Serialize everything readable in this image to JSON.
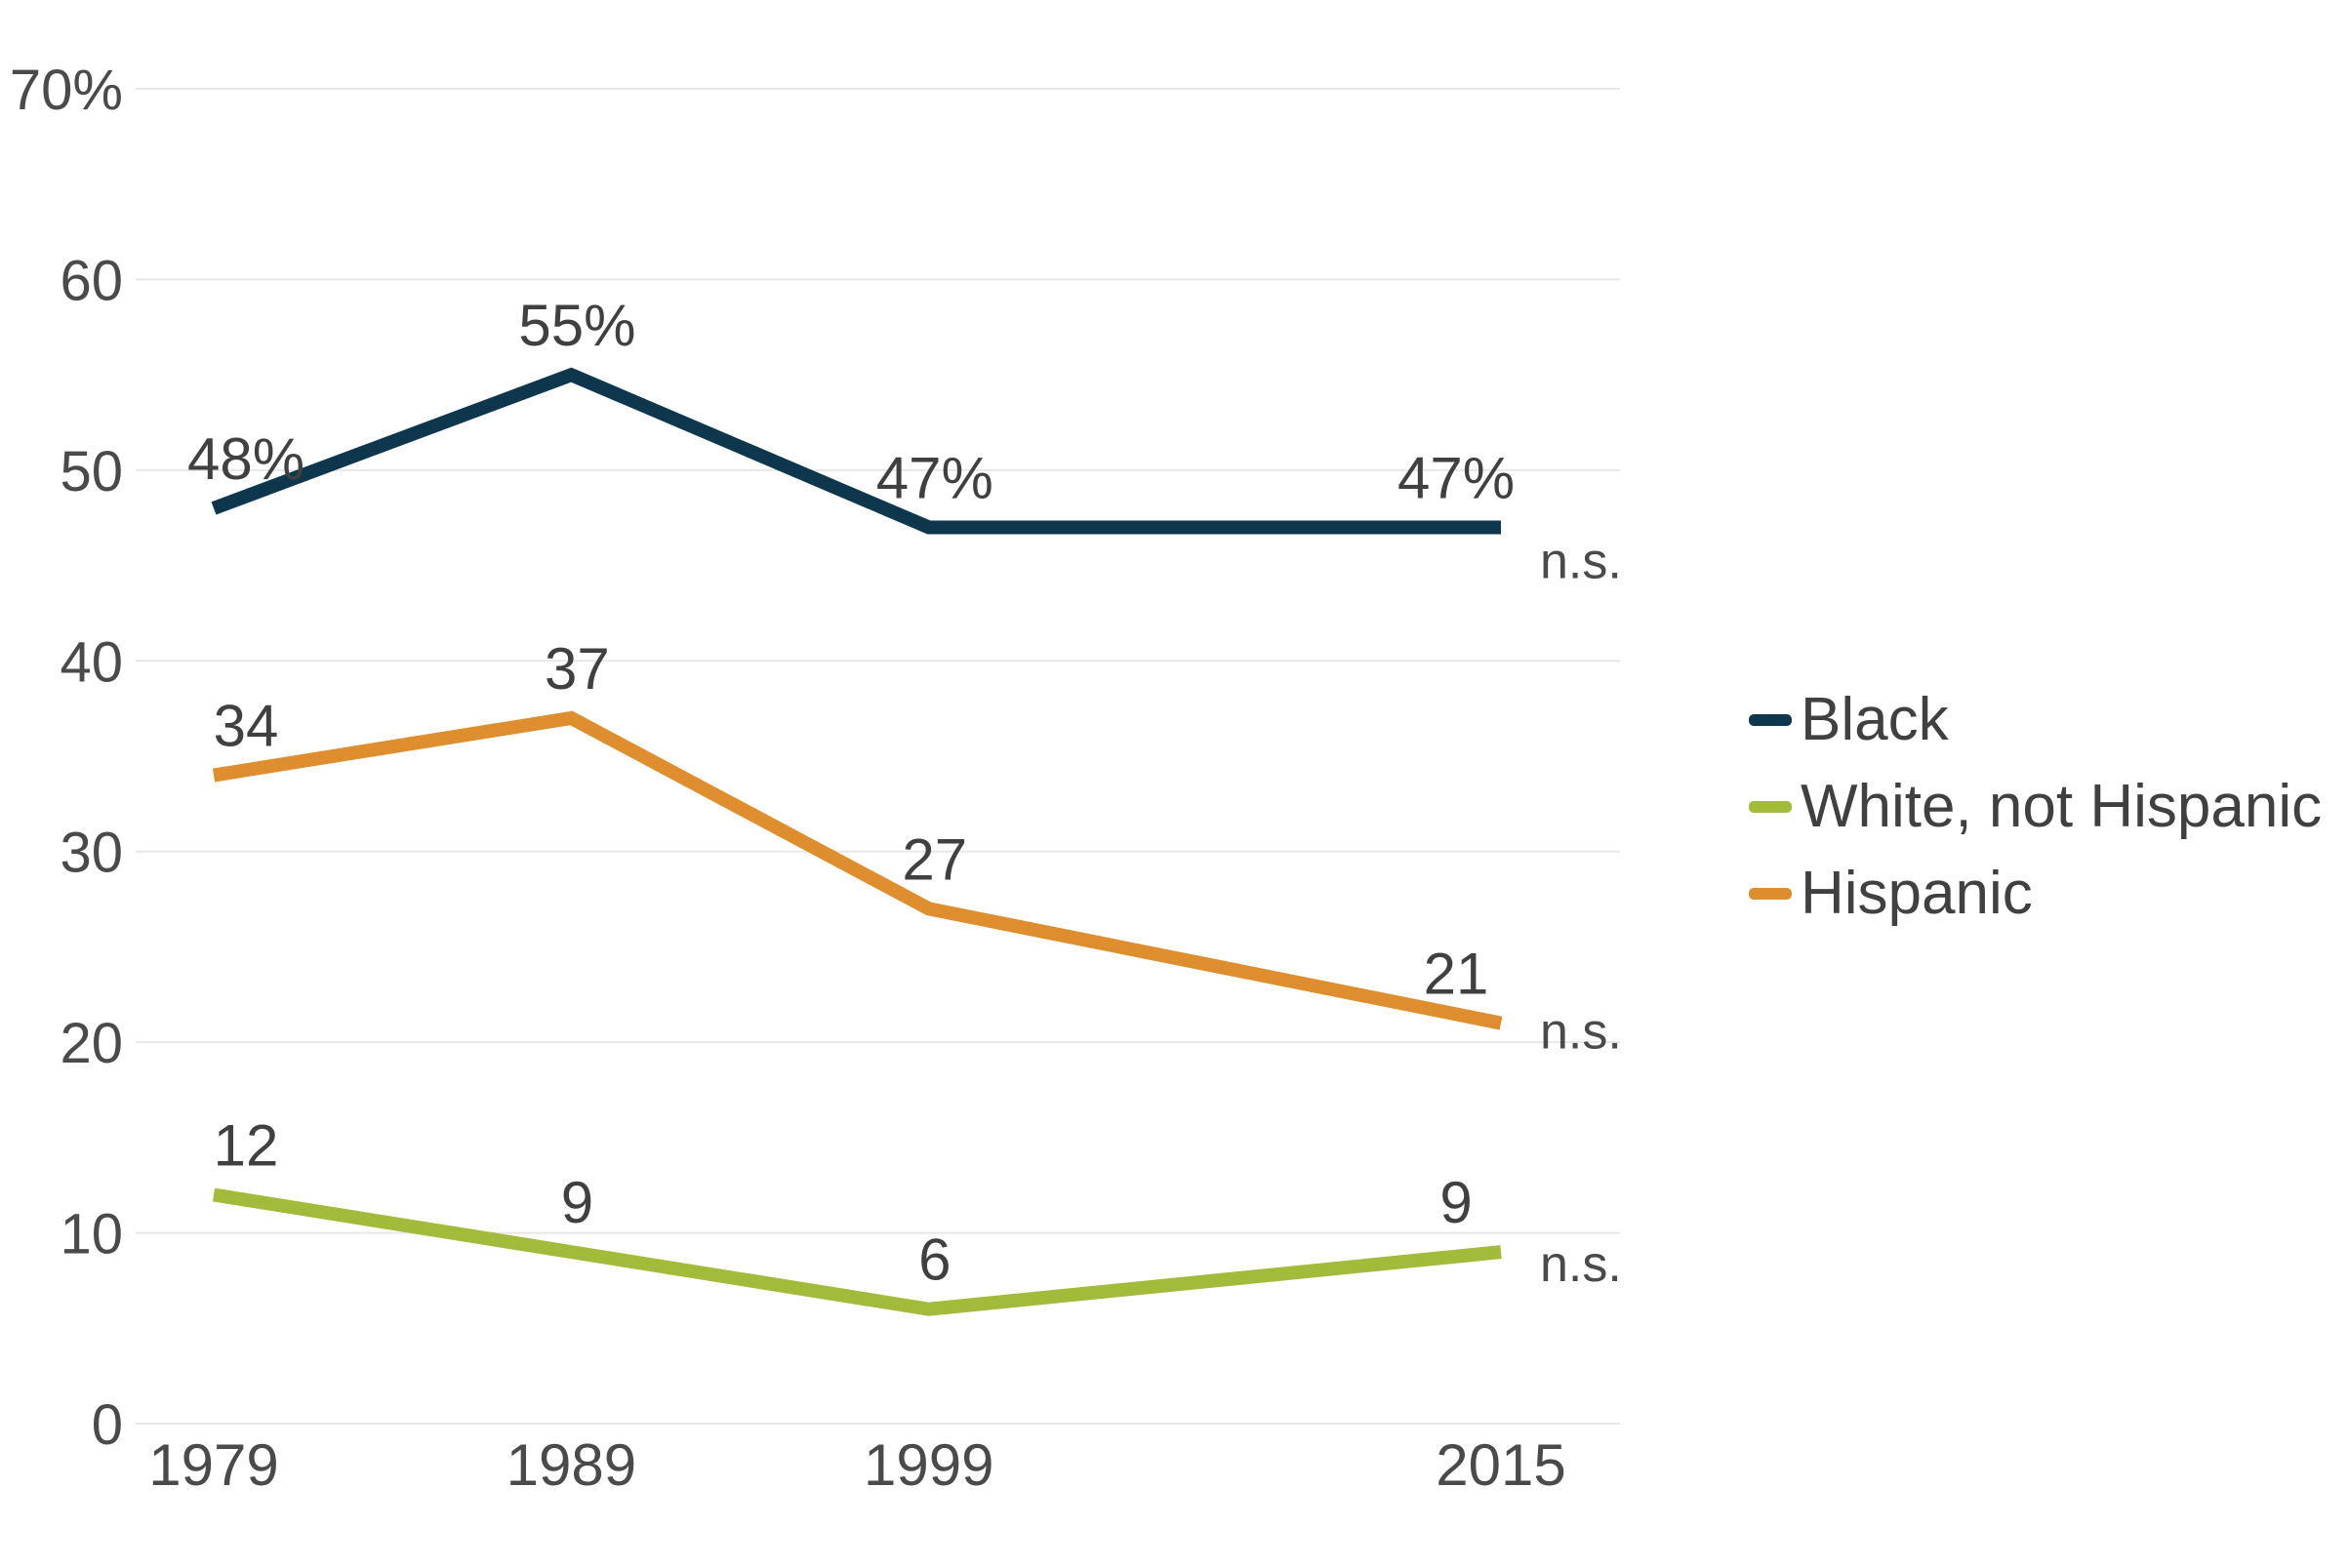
{
  "chart_data": {
    "type": "line",
    "title": "",
    "x": [
      1979,
      1989,
      1999,
      2015
    ],
    "x_tick_labels": [
      "1979",
      "1989",
      "1999",
      "2015"
    ],
    "y_axis": {
      "min": 0,
      "max": 70,
      "tick_step": 10,
      "tick_labels": [
        "0",
        "10",
        "20",
        "30",
        "40",
        "50",
        "60",
        "70%"
      ]
    },
    "grid": true,
    "legend_position": "right",
    "legend_order": [
      "Black",
      "White, not Hispanic",
      "Hispanic"
    ],
    "series": [
      {
        "name": "Black",
        "color": "#0e374d",
        "values": [
          48,
          55,
          47,
          47
        ],
        "point_labels": [
          "48%",
          "55%",
          "47%",
          "47%"
        ],
        "end_annotation": "n.s."
      },
      {
        "name": "White, not Hispanic",
        "color": "#a2bb3b",
        "values": [
          12,
          9,
          6,
          9
        ],
        "point_labels": [
          "12",
          "9",
          "6",
          "9"
        ],
        "end_annotation": "n.s."
      },
      {
        "name": "Hispanic",
        "color": "#de8e2e",
        "values": [
          34,
          37,
          27,
          21
        ],
        "point_labels": [
          "34",
          "37",
          "27",
          "21"
        ],
        "end_annotation": "n.s."
      }
    ],
    "colors": {
      "grid": "#e7e7e7",
      "tick_text": "#4a4a4a",
      "label_text": "#404040",
      "ns_text": "#4a4a4a",
      "background": "#ffffff"
    }
  }
}
